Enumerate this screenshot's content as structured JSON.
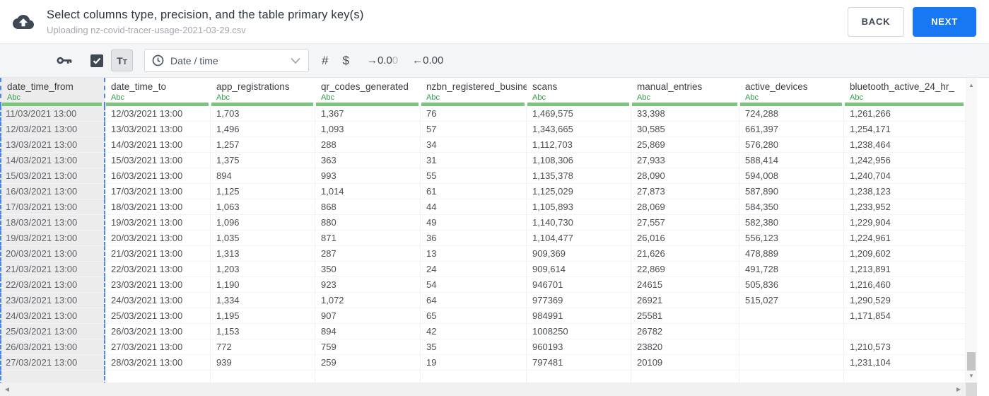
{
  "header": {
    "title": "Select columns type, precision, and the table primary key(s)",
    "subtitle": "Uploading nz-covid-tracer-usage-2021-03-29.csv",
    "back_label": "BACK",
    "next_label": "NEXT"
  },
  "toolbar": {
    "key_icon": "primary-key-icon",
    "checkbox_checked": true,
    "text_type_label": "Tt",
    "type_select": {
      "value": "Date / time",
      "icon": "clock-icon"
    },
    "number_label": "#",
    "currency_label": "$",
    "decimal_increase": {
      "text": "→0.0",
      "faded": "0"
    },
    "decimal_decrease": {
      "text": "←0.00"
    }
  },
  "colors": {
    "accent_blue": "#1877f2",
    "type_green": "#2f9e44",
    "indicator_green": "#7cc57c",
    "selection_blue": "#4a86e8",
    "toolbar_bg": "#f4f5f6",
    "selected_column_bg": "#ececec"
  },
  "table": {
    "columns": [
      {
        "name": "date_time_from",
        "type_label": "Abc",
        "selected": true
      },
      {
        "name": "date_time_to",
        "type_label": "Abc",
        "selected": false
      },
      {
        "name": "app_registrations",
        "type_label": "Abc",
        "selected": false
      },
      {
        "name": "qr_codes_generated",
        "type_label": "Abc",
        "selected": false
      },
      {
        "name": "nzbn_registered_busine",
        "type_label": "Abc",
        "selected": false
      },
      {
        "name": "scans",
        "type_label": "Abc",
        "selected": false
      },
      {
        "name": "manual_entries",
        "type_label": "Abc",
        "selected": false
      },
      {
        "name": "active_devices",
        "type_label": "Abc",
        "selected": false
      },
      {
        "name": "bluetooth_active_24_hr_",
        "type_label": "Abc",
        "selected": false
      }
    ],
    "rows": [
      [
        "11/03/2021 13:00",
        "12/03/2021 13:00",
        "1,703",
        "1,367",
        "76",
        "1,469,575",
        "33,398",
        "724,288",
        "1,261,266"
      ],
      [
        "12/03/2021 13:00",
        "13/03/2021 13:00",
        "1,496",
        "1,093",
        "57",
        "1,343,665",
        "30,585",
        "661,397",
        "1,254,171"
      ],
      [
        "13/03/2021 13:00",
        "14/03/2021 13:00",
        "1,257",
        "288",
        "34",
        "1,112,703",
        "25,869",
        "576,280",
        "1,238,464"
      ],
      [
        "14/03/2021 13:00",
        "15/03/2021 13:00",
        "1,375",
        "363",
        "31",
        "1,108,306",
        "27,933",
        "588,414",
        "1,242,956"
      ],
      [
        "15/03/2021 13:00",
        "16/03/2021 13:00",
        "894",
        "993",
        "55",
        "1,135,378",
        "28,090",
        "594,008",
        "1,240,704"
      ],
      [
        "16/03/2021 13:00",
        "17/03/2021 13:00",
        "1,125",
        "1,014",
        "61",
        "1,125,029",
        "27,873",
        "587,890",
        "1,238,123"
      ],
      [
        "17/03/2021 13:00",
        "18/03/2021 13:00",
        "1,063",
        "868",
        "44",
        "1,105,893",
        "28,069",
        "584,350",
        "1,233,952"
      ],
      [
        "18/03/2021 13:00",
        "19/03/2021 13:00",
        "1,096",
        "880",
        "49",
        "1,140,730",
        "27,557",
        "582,380",
        "1,229,904"
      ],
      [
        "19/03/2021 13:00",
        "20/03/2021 13:00",
        "1,035",
        "871",
        "36",
        "1,104,477",
        "26,016",
        "556,123",
        "1,224,961"
      ],
      [
        "20/03/2021 13:00",
        "21/03/2021 13:00",
        "1,313",
        "287",
        "13",
        "909,369",
        "21,626",
        "478,889",
        "1,209,602"
      ],
      [
        "21/03/2021 13:00",
        "22/03/2021 13:00",
        "1,203",
        "350",
        "24",
        "909,614",
        "22,869",
        "491,728",
        "1,213,891"
      ],
      [
        "22/03/2021 13:00",
        "23/03/2021 13:00",
        "1,190",
        "923",
        "54",
        "946701",
        "24615",
        "505,836",
        "1,216,460"
      ],
      [
        "23/03/2021 13:00",
        "24/03/2021 13:00",
        "1,334",
        "1,072",
        "64",
        "977369",
        "26921",
        "515,027",
        "1,290,529"
      ],
      [
        "24/03/2021 13:00",
        "25/03/2021 13:00",
        "1,195",
        "907",
        "65",
        "984991",
        "25581",
        "",
        "1,171,854"
      ],
      [
        "25/03/2021 13:00",
        "26/03/2021 13:00",
        "1,153",
        "894",
        "42",
        "1008250",
        "26782",
        "",
        ""
      ],
      [
        "26/03/2021 13:00",
        "27/03/2021 13:00",
        "772",
        "759",
        "35",
        "960193",
        "23820",
        "",
        "1,210,573"
      ],
      [
        "27/03/2021 13:00",
        "28/03/2021 13:00",
        "939",
        "259",
        "19",
        "797481",
        "20109",
        "",
        "1,231,104"
      ]
    ]
  }
}
